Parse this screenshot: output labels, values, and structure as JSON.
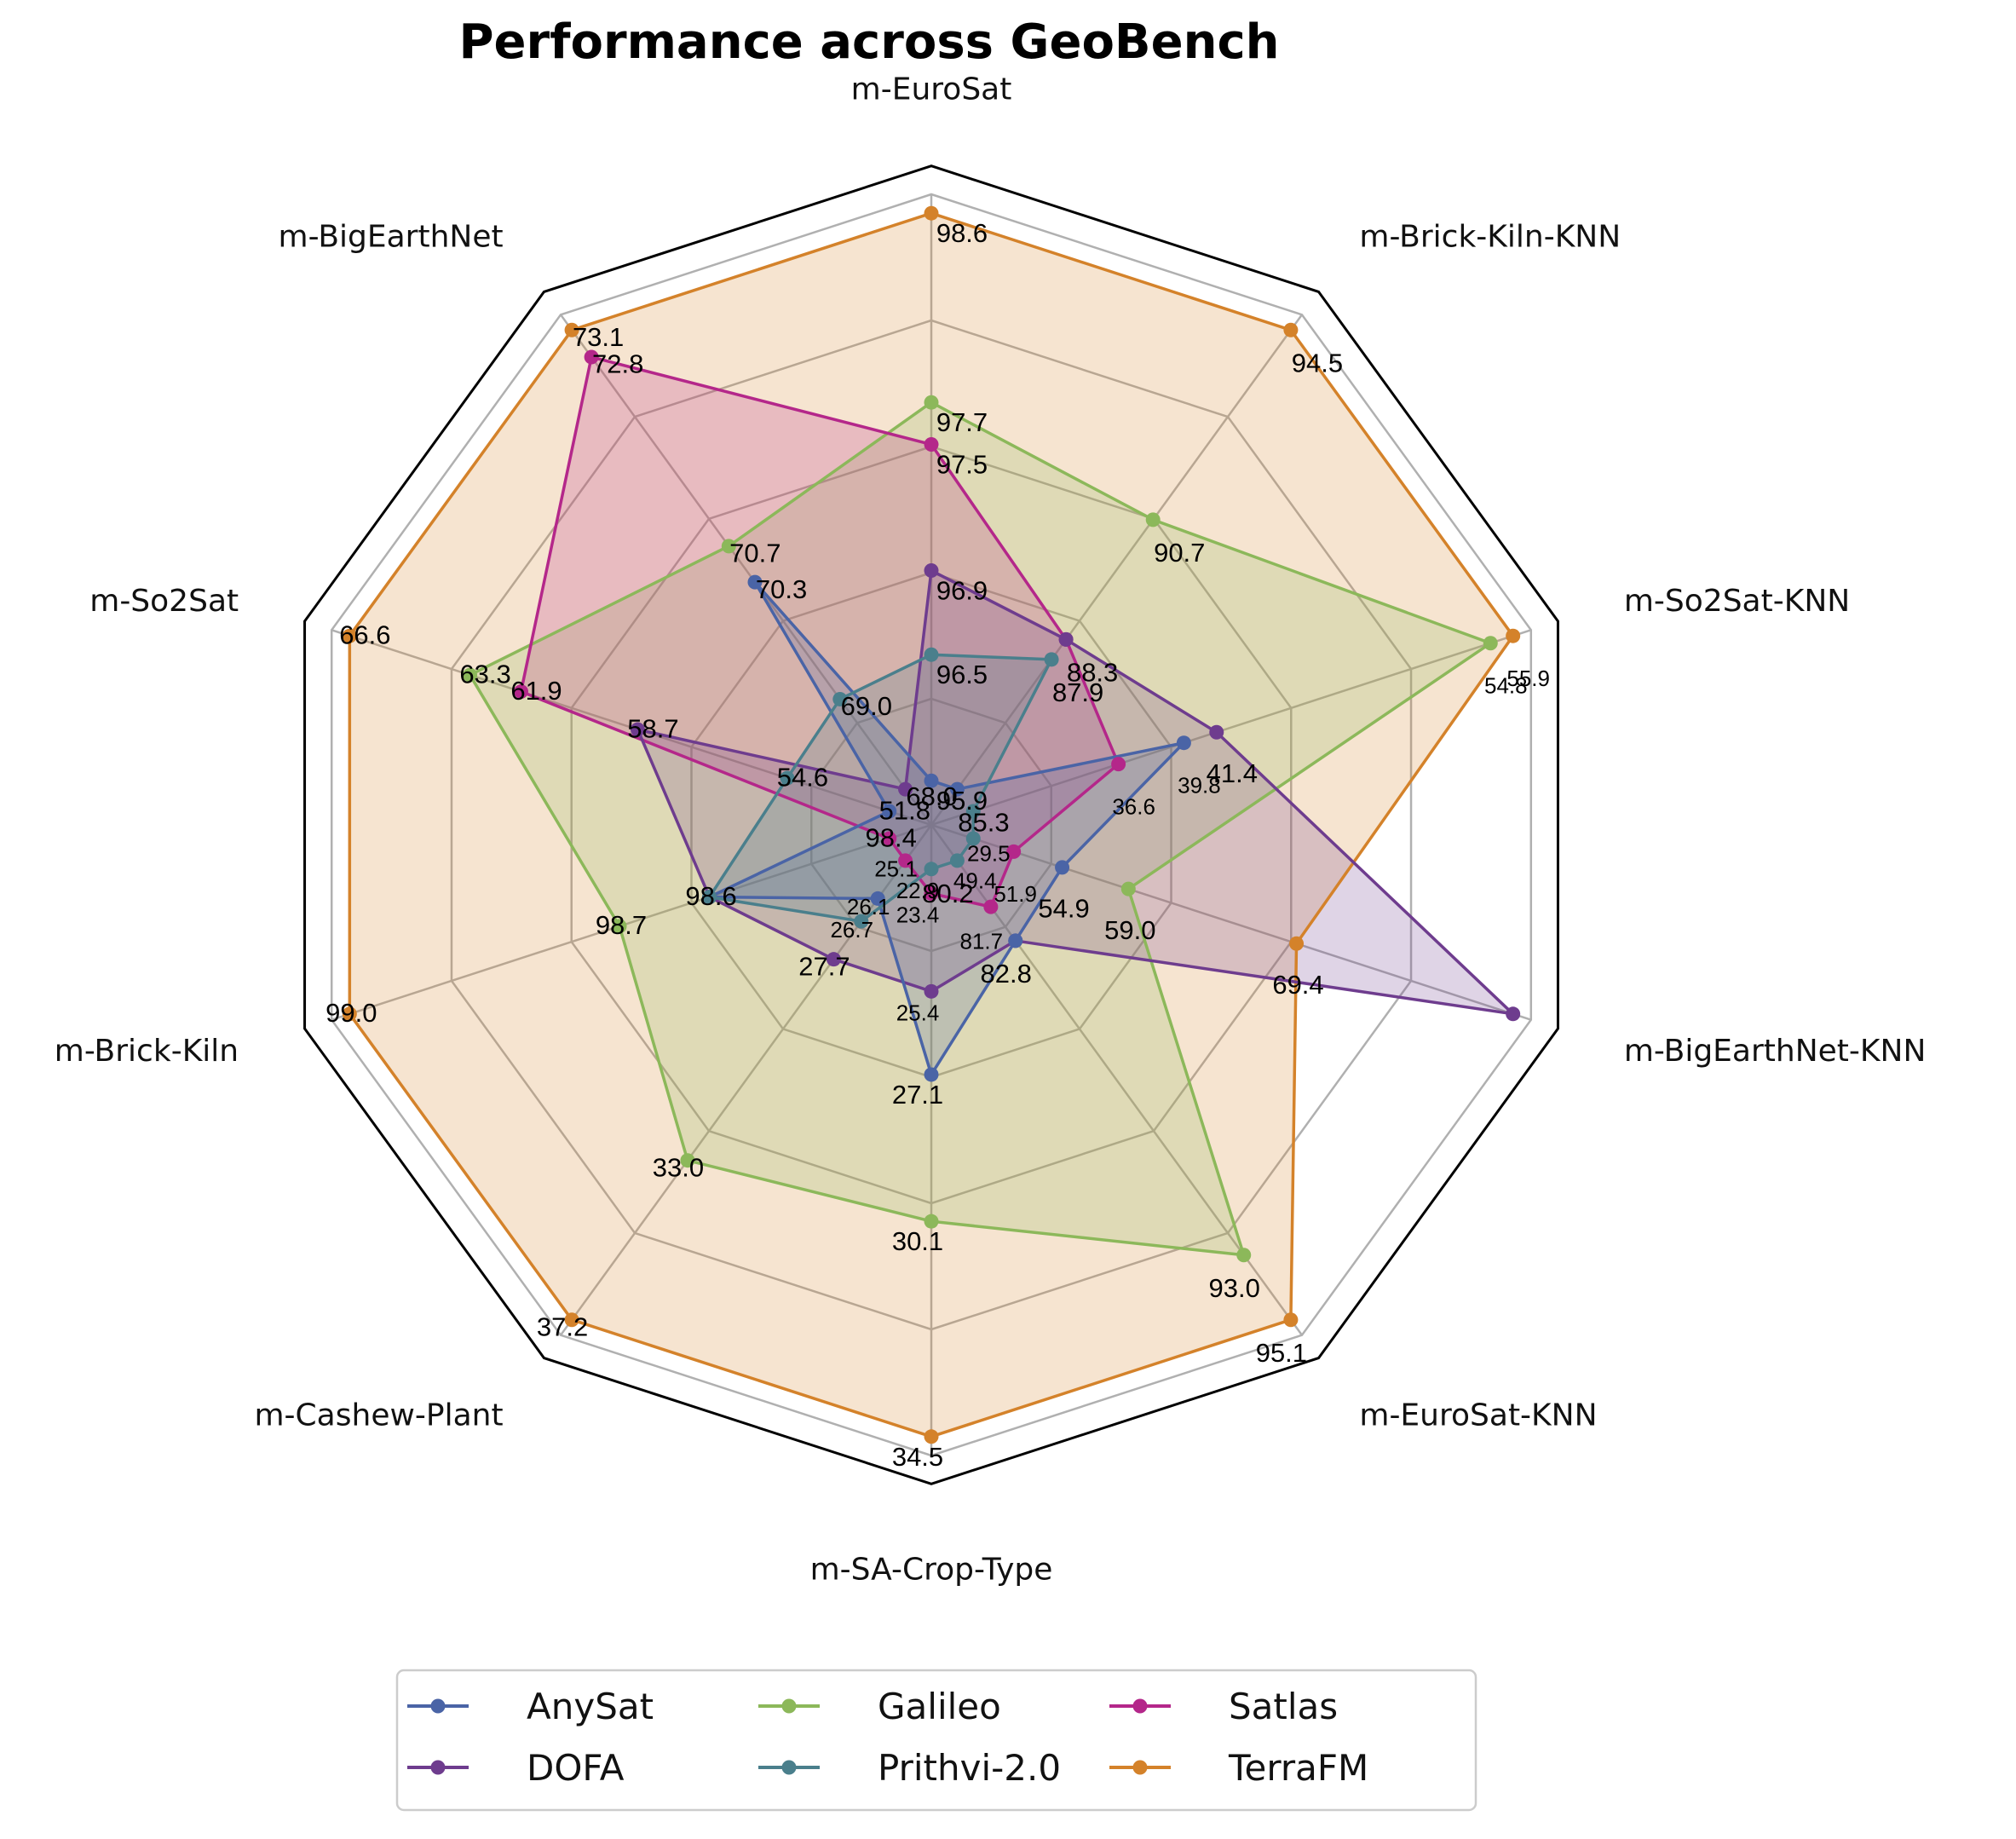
{
  "chart_data": {
    "type": "radar",
    "title": "Performance across GeoBench",
    "axes": [
      "m-EuroSat",
      "m-Brick-Kiln-KNN",
      "m-So2Sat-KNN",
      "m-BigEarthNet-KNN",
      "m-EuroSat-KNN",
      "m-SA-Crop-Type",
      "m-Cashew-Plant",
      "m-Brick-Kiln",
      "m-So2Sat",
      "m-BigEarthNet"
    ],
    "levels": 5,
    "grid": true,
    "legend_position": "bottom",
    "colors": {
      "AnySat": "#4a64a6",
      "DOFA": "#6e3c8e",
      "Galileo": "#8cb85a",
      "Prithvi-2.0": "#4a7f8c",
      "Satlas": "#b4278a",
      "TerraFM": "#d4822a"
    },
    "series": [
      {
        "name": "AnySat",
        "values": [
          95.9,
          85.3,
          39.8,
          54.9,
          82.8,
          27.1,
          26.1,
          98.6,
          51.8,
          70.3
        ]
      },
      {
        "name": "DOFA",
        "values": [
          96.9,
          88.3,
          41.4,
          82.8,
          82.8,
          25.4,
          27.7,
          98.6,
          58.7,
          68.0
        ]
      },
      {
        "name": "Galileo",
        "values": [
          97.7,
          90.7,
          54.8,
          59.0,
          93.0,
          30.1,
          33.0,
          98.7,
          63.3,
          70.7
        ]
      },
      {
        "name": "Prithvi-2.0",
        "values": [
          96.5,
          87.9,
          29.5,
          49.4,
          80.2,
          22.9,
          26.7,
          98.6,
          54.6,
          69.0
        ]
      },
      {
        "name": "Satlas",
        "values": [
          97.5,
          88.3,
          36.6,
          51.9,
          81.7,
          23.4,
          25.1,
          98.4,
          61.9,
          72.8
        ]
      },
      {
        "name": "TerraFM",
        "values": [
          98.6,
          94.5,
          55.9,
          69.4,
          95.1,
          34.5,
          37.2,
          99.0,
          66.6,
          73.1
        ]
      }
    ],
    "data_labels": [
      {
        "text": "98.6",
        "axis": 0,
        "series": "TerraFM"
      },
      {
        "text": "97.7",
        "axis": 0,
        "series": "Galileo"
      },
      {
        "text": "97.5",
        "axis": 0,
        "series": "Satlas"
      },
      {
        "text": "96.9",
        "axis": 0,
        "series": "DOFA"
      },
      {
        "text": "96.5",
        "axis": 0,
        "series": "Prithvi-2.0"
      },
      {
        "text": "95.9",
        "axis": 0,
        "series": "AnySat"
      },
      {
        "text": "94.5",
        "axis": 1,
        "series": "TerraFM"
      },
      {
        "text": "90.7",
        "axis": 1,
        "series": "Galileo"
      },
      {
        "text": "88.3",
        "axis": 1,
        "series": "DOFA"
      },
      {
        "text": "87.9",
        "axis": 1,
        "series": "Prithvi-2.0"
      },
      {
        "text": "85.3",
        "axis": 1,
        "series": "AnySat"
      },
      {
        "text": "54.8",
        "axis": 2,
        "series": "Galileo",
        "small": true
      },
      {
        "text": "55.9",
        "axis": 2,
        "series": "TerraFM",
        "small": true
      },
      {
        "text": "41.4",
        "axis": 2,
        "series": "DOFA"
      },
      {
        "text": "39.8",
        "axis": 2,
        "series": "AnySat",
        "small": true
      },
      {
        "text": "36.6",
        "axis": 2,
        "series": "Satlas",
        "small": true
      },
      {
        "text": "29.5",
        "axis": 2,
        "series": "Prithvi-2.0",
        "small": true
      },
      {
        "text": "69.4",
        "axis": 3,
        "series": "TerraFM"
      },
      {
        "text": "59.0",
        "axis": 3,
        "series": "Galileo"
      },
      {
        "text": "54.9",
        "axis": 3,
        "series": "AnySat"
      },
      {
        "text": "51.9",
        "axis": 3,
        "series": "Satlas",
        "small": true
      },
      {
        "text": "49.4",
        "axis": 3,
        "series": "Prithvi-2.0",
        "small": true
      },
      {
        "text": "95.1",
        "axis": 4,
        "series": "TerraFM"
      },
      {
        "text": "93.0",
        "axis": 4,
        "series": "Galileo"
      },
      {
        "text": "82.8",
        "axis": 4,
        "series": "DOFA"
      },
      {
        "text": "81.7",
        "axis": 4,
        "series": "Satlas",
        "small": true
      },
      {
        "text": "80.2",
        "axis": 4,
        "series": "Prithvi-2.0"
      },
      {
        "text": "34.5",
        "axis": 5,
        "series": "TerraFM"
      },
      {
        "text": "30.1",
        "axis": 5,
        "series": "Galileo"
      },
      {
        "text": "27.1",
        "axis": 5,
        "series": "AnySat"
      },
      {
        "text": "25.4",
        "axis": 5,
        "series": "DOFA",
        "small": true
      },
      {
        "text": "23.4",
        "axis": 5,
        "series": "Satlas",
        "small": true
      },
      {
        "text": "22.9",
        "axis": 5,
        "series": "Prithvi-2.0",
        "small": true
      },
      {
        "text": "37.2",
        "axis": 6,
        "series": "TerraFM"
      },
      {
        "text": "33.0",
        "axis": 6,
        "series": "Galileo"
      },
      {
        "text": "27.7",
        "axis": 6,
        "series": "DOFA"
      },
      {
        "text": "26.7",
        "axis": 6,
        "series": "Prithvi-2.0",
        "small": true
      },
      {
        "text": "26.1",
        "axis": 6,
        "series": "AnySat",
        "small": true
      },
      {
        "text": "25.1",
        "axis": 6,
        "series": "Satlas",
        "small": true
      },
      {
        "text": "99.0",
        "axis": 7,
        "series": "TerraFM"
      },
      {
        "text": "98.7",
        "axis": 7,
        "series": "Galileo"
      },
      {
        "text": "98.6",
        "axis": 7,
        "series": "AnySat"
      },
      {
        "text": "98.4",
        "axis": 7,
        "series": "Satlas"
      },
      {
        "text": "66.6",
        "axis": 8,
        "series": "TerraFM"
      },
      {
        "text": "63.3",
        "axis": 8,
        "series": "Galileo"
      },
      {
        "text": "61.9",
        "axis": 8,
        "series": "Satlas"
      },
      {
        "text": "58.7",
        "axis": 8,
        "series": "DOFA"
      },
      {
        "text": "54.6",
        "axis": 8,
        "series": "Prithvi-2.0"
      },
      {
        "text": "51.8",
        "axis": 8,
        "series": "AnySat"
      },
      {
        "text": "73.1",
        "axis": 9,
        "series": "TerraFM"
      },
      {
        "text": "72.8",
        "axis": 9,
        "series": "Satlas"
      },
      {
        "text": "70.7",
        "axis": 9,
        "series": "Galileo"
      },
      {
        "text": "70.3",
        "axis": 9,
        "series": "AnySat"
      },
      {
        "text": "69.0",
        "axis": 9,
        "series": "Prithvi-2.0"
      },
      {
        "text": "68.0",
        "axis": 9,
        "series": "DOFA"
      }
    ],
    "legend": [
      "AnySat",
      "DOFA",
      "Galileo",
      "Prithvi-2.0",
      "Satlas",
      "TerraFM"
    ]
  }
}
